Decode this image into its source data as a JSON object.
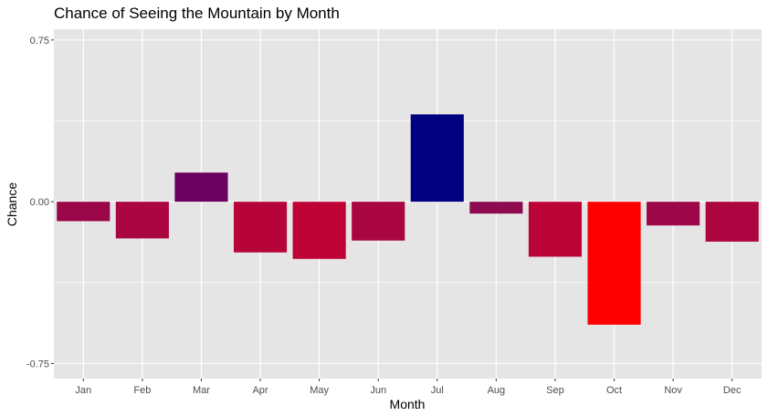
{
  "chart_data": {
    "type": "bar",
    "title": "Chance of Seeing the Mountain by Month",
    "xlabel": "Month",
    "ylabel": "Chance",
    "categories": [
      "Jan",
      "Feb",
      "Mar",
      "Apr",
      "May",
      "Jun",
      "Jul",
      "Aug",
      "Sep",
      "Oct",
      "Nov",
      "Dec"
    ],
    "values": [
      -0.09,
      -0.17,
      0.135,
      -0.235,
      -0.265,
      -0.18,
      0.405,
      -0.055,
      -0.255,
      -0.57,
      -0.11,
      -0.185
    ],
    "colors": [
      "#9a0748",
      "#aa0540",
      "#6a005f",
      "#b6033a",
      "#bf0236",
      "#a80541",
      "#000080",
      "#8d0b4e",
      "#bb0338",
      "#ff0000",
      "#9d0747",
      "#ad053f"
    ],
    "yticks": [
      -0.75,
      0.0,
      0.75
    ],
    "ytick_labels": [
      "-0.75",
      "0.00",
      "0.75"
    ],
    "ylim": [
      -0.82,
      0.8
    ],
    "grid": true,
    "legend": "none",
    "background": "#e5e5e5",
    "grid_color": "#ffffff"
  }
}
